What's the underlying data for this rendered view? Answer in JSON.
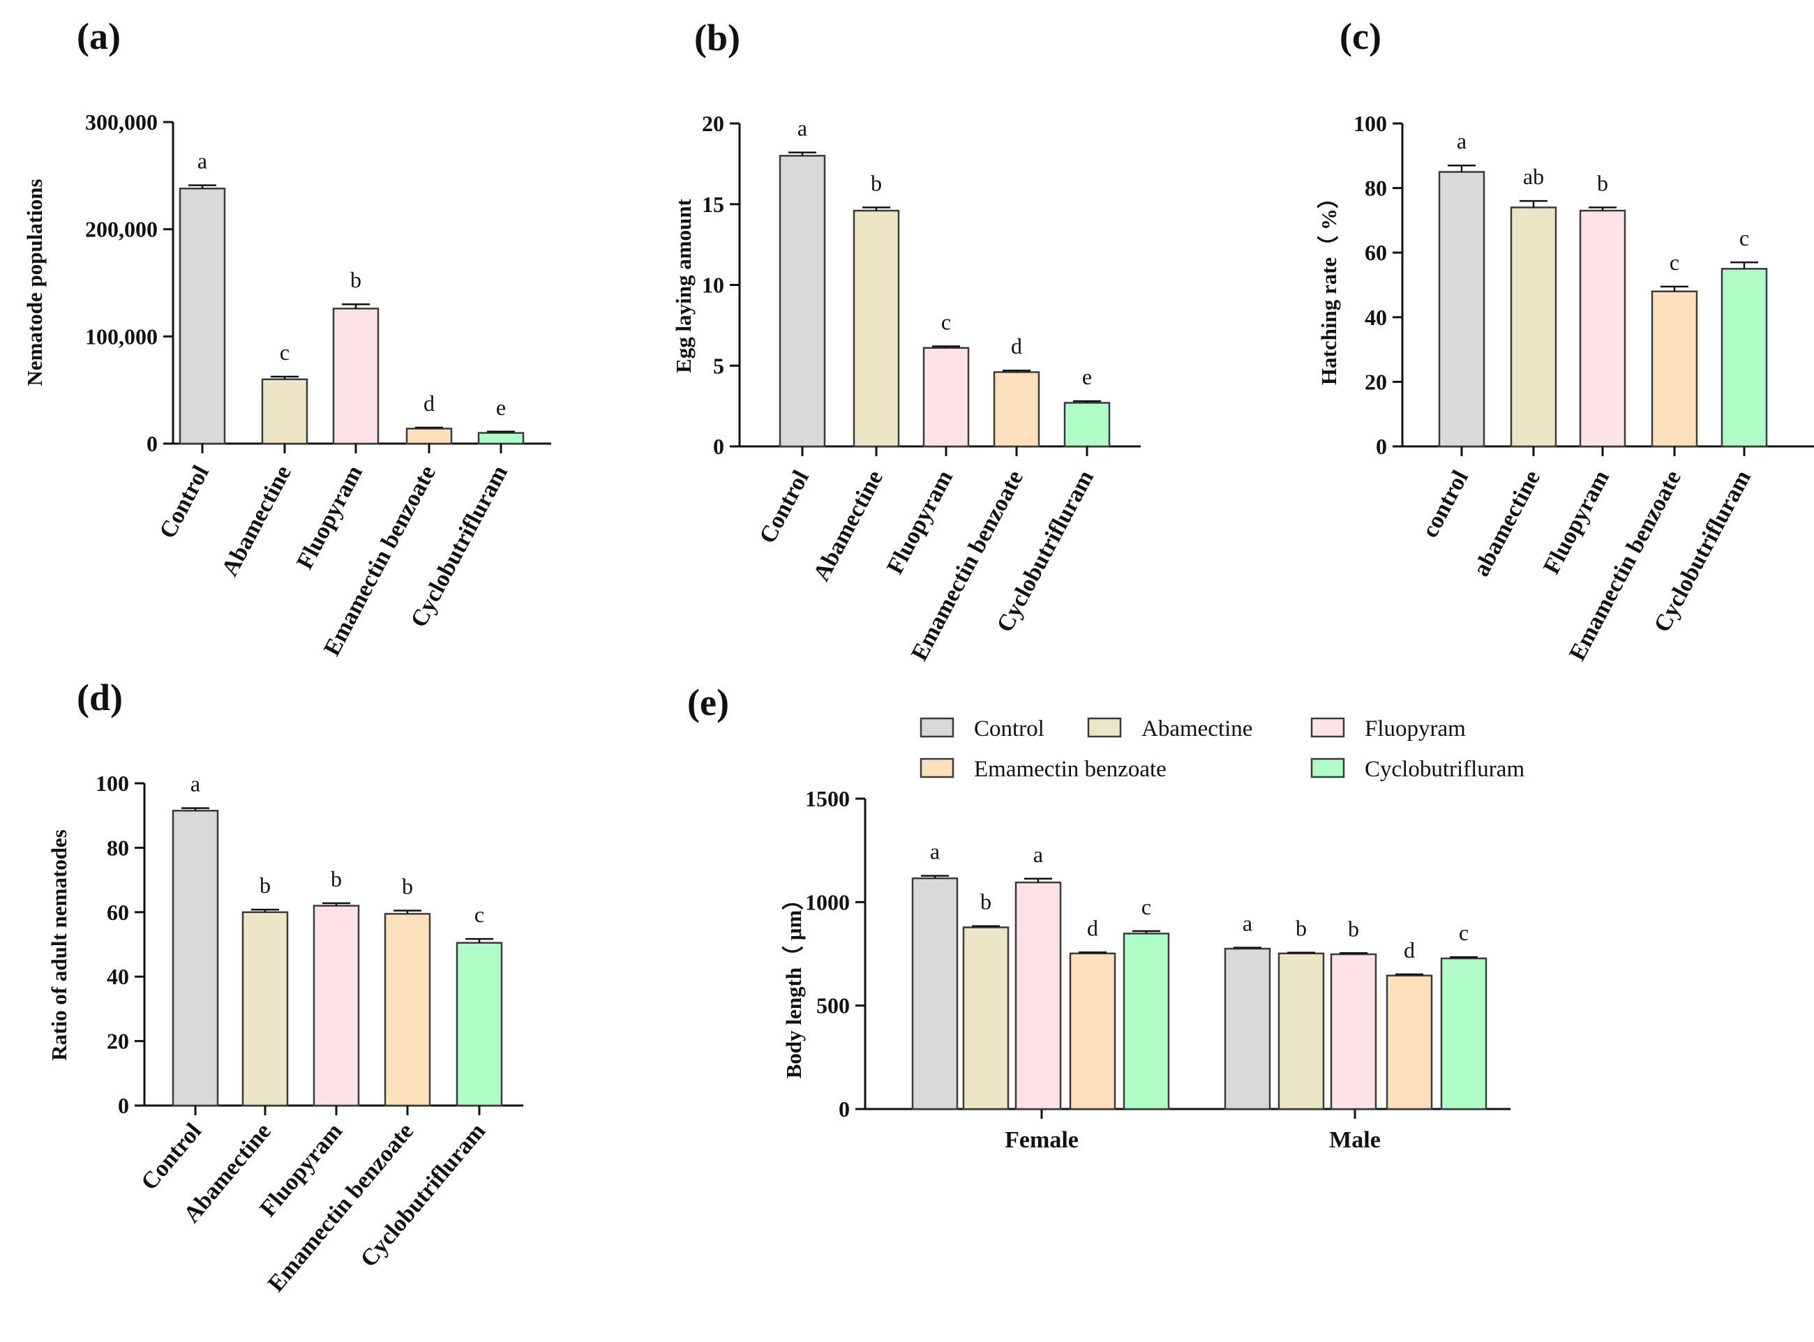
{
  "colors": {
    "control": "#d9d9d9",
    "abamectine": "#ede6c6",
    "fluopyram": "#fde3e5",
    "emamectin": "#fde1bd",
    "cyclobutrifluram": "#b0fcc7",
    "stroke": "#3a3a3a"
  },
  "chart_data": [
    {
      "id": "a",
      "panel_label": "(a)",
      "type": "bar",
      "ylabel": "Nematode populations",
      "ylim": [
        0,
        300000
      ],
      "yticks": [
        0,
        100000,
        200000,
        300000
      ],
      "ytick_labels": [
        "0",
        "100,000",
        "200,000",
        "300,000"
      ],
      "categories": [
        "Control",
        "Abamectine",
        "Fluopyram",
        "Emamectin benzoate",
        "Cyclobutrifluram"
      ],
      "values": [
        238000,
        60000,
        126000,
        14000,
        10000
      ],
      "errors": [
        3000,
        2500,
        4000,
        1000,
        1200
      ],
      "letters": [
        "a",
        "c",
        "b",
        "d",
        "e"
      ]
    },
    {
      "id": "b",
      "panel_label": "(b)",
      "type": "bar",
      "ylabel": "Egg laying amount",
      "ylim": [
        0,
        20
      ],
      "yticks": [
        0,
        5,
        10,
        15,
        20
      ],
      "ytick_labels": [
        "0",
        "5",
        "10",
        "15",
        "20"
      ],
      "categories": [
        "Control",
        "Abamectine",
        "Fluopyram",
        "Emamectin benzoate",
        "Cyclobutrifluram"
      ],
      "values": [
        18.0,
        14.6,
        6.1,
        4.6,
        2.7
      ],
      "errors": [
        0.2,
        0.2,
        0.1,
        0.1,
        0.1
      ],
      "letters": [
        "a",
        "b",
        "c",
        "d",
        "e"
      ]
    },
    {
      "id": "c",
      "panel_label": "(c)",
      "type": "bar",
      "ylabel": "Hatching rate（ %）",
      "ylim": [
        0,
        100
      ],
      "yticks": [
        0,
        20,
        40,
        60,
        80,
        100
      ],
      "ytick_labels": [
        "0",
        "20",
        "40",
        "60",
        "80",
        "100"
      ],
      "categories": [
        "control",
        "abamectine",
        "Fluopyram",
        "Emamectin benzoate",
        "Cyclobutrifluram"
      ],
      "values": [
        85,
        74,
        73,
        48,
        55
      ],
      "errors": [
        2.0,
        2.0,
        1.0,
        1.5,
        2.0
      ],
      "letters": [
        "a",
        "ab",
        "b",
        "c",
        "c"
      ]
    },
    {
      "id": "d",
      "panel_label": "(d)",
      "type": "bar",
      "ylabel": "Ratio of adult nematodes",
      "ylim": [
        0,
        100
      ],
      "yticks": [
        0,
        20,
        40,
        60,
        80,
        100
      ],
      "ytick_labels": [
        "0",
        "20",
        "40",
        "60",
        "80",
        "100"
      ],
      "categories": [
        "Control",
        "Abamectine",
        "Fluopyram",
        "Emamectin benzoate",
        "Cyclobutrifluram"
      ],
      "values": [
        91.5,
        60,
        62,
        59.5,
        50.5
      ],
      "errors": [
        0.8,
        0.8,
        0.8,
        1.0,
        1.2
      ],
      "letters": [
        "a",
        "b",
        "b",
        "b",
        "c"
      ]
    },
    {
      "id": "e",
      "panel_label": "(e)",
      "type": "bar",
      "ylabel": "Body length（ μm）",
      "ylim": [
        0,
        1500
      ],
      "yticks": [
        0,
        500,
        1000,
        1500
      ],
      "ytick_labels": [
        "0",
        "500",
        "1000",
        "1500"
      ],
      "categories": [
        "Female",
        "Male"
      ],
      "series": [
        {
          "name": "Control",
          "values": [
            1115,
            775
          ],
          "errors": [
            12,
            5
          ],
          "letters": [
            "a",
            "a"
          ]
        },
        {
          "name": "Abamectine",
          "values": [
            878,
            752
          ],
          "errors": [
            6,
            4
          ],
          "letters": [
            "b",
            "b"
          ]
        },
        {
          "name": "Fluopyram",
          "values": [
            1095,
            748
          ],
          "errors": [
            18,
            6
          ],
          "letters": [
            "a",
            "b"
          ]
        },
        {
          "name": "Emamectin benzoate",
          "values": [
            752,
            645
          ],
          "errors": [
            5,
            6
          ],
          "letters": [
            "d",
            "d"
          ]
        },
        {
          "name": "Cyclobutrifluram",
          "values": [
            848,
            728
          ],
          "errors": [
            12,
            6
          ],
          "letters": [
            "c",
            "c"
          ]
        }
      ]
    }
  ]
}
